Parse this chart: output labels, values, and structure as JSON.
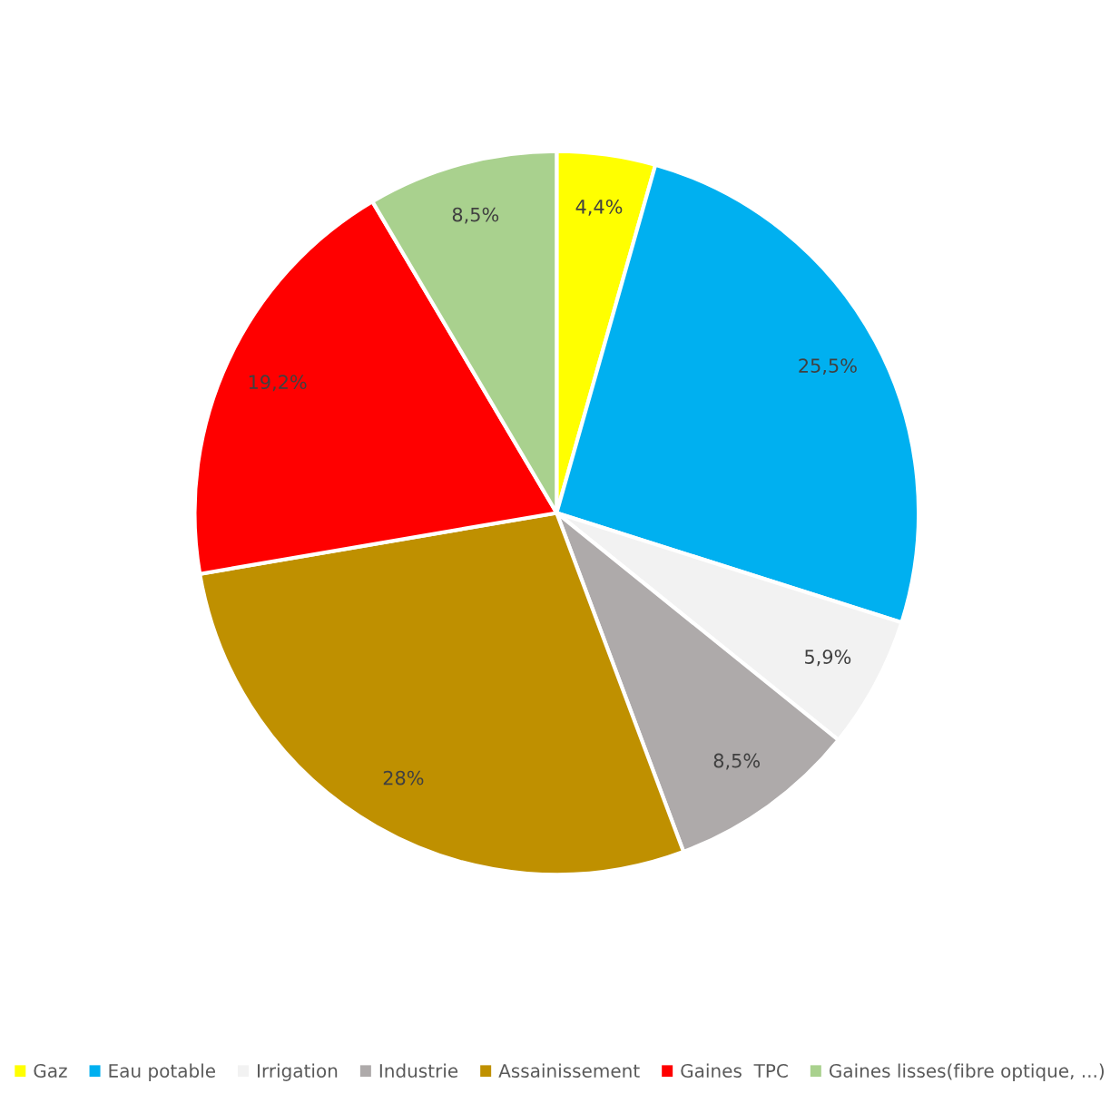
{
  "chart_data": {
    "type": "pie",
    "categories": [
      "Gaz",
      "Eau potable",
      "Irrigation",
      "Industrie",
      "Assainissement",
      "Gaines  TPC",
      "Gaines lisses(fibre optique, ...)"
    ],
    "values": [
      4.4,
      25.5,
      5.9,
      8.5,
      28,
      19.2,
      8.5
    ],
    "value_labels": [
      "4,4%",
      "25,5%",
      "5,9%",
      "8,5%",
      "28%",
      "19,2%",
      "8,5%"
    ],
    "colors": [
      "#ffff00",
      "#00b0f0",
      "#f2f2f2",
      "#aeaaaa",
      "#bf9000",
      "#ff0000",
      "#a9d18e"
    ],
    "legend": "bottom"
  }
}
